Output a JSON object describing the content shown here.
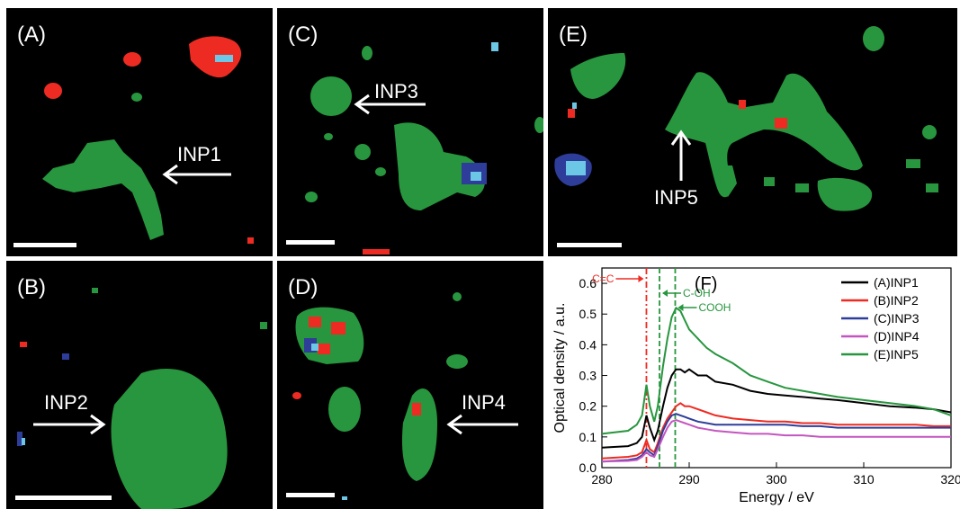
{
  "panels": {
    "A": {
      "label": "(A)",
      "particle": "INP1"
    },
    "B": {
      "label": "(B)",
      "particle": "INP2"
    },
    "C": {
      "label": "(C)",
      "particle": "INP3"
    },
    "D": {
      "label": "(D)",
      "particle": "INP4"
    },
    "E": {
      "label": "(E)",
      "particle": "INP5"
    }
  },
  "colors": {
    "green": "#27963e",
    "red": "#ee2b22",
    "lightblue": "#6cc7e6",
    "blue": "#2e3d9a",
    "magenta": "#c455c0",
    "black": "#000000"
  },
  "chart_data": {
    "type": "line",
    "panel_label": "(F)",
    "xlabel": "Energy / eV",
    "ylabel": "Optical density / a.u.",
    "xlim": [
      280,
      320
    ],
    "ylim": [
      0.0,
      0.65
    ],
    "xticks": [
      280,
      290,
      300,
      310,
      320
    ],
    "yticks": [
      0.0,
      0.1,
      0.2,
      0.3,
      0.4,
      0.5,
      0.6
    ],
    "legend_position": "top-right",
    "markers": [
      {
        "label": "C=C",
        "x": 285.1,
        "color": "#ee2b22",
        "arrow": "right"
      },
      {
        "label": "C-OH",
        "x": 286.6,
        "color": "#27963e",
        "arrow": "left"
      },
      {
        "label": "COOH",
        "x": 288.4,
        "color": "#27963e",
        "arrow": "left"
      }
    ],
    "x": [
      280,
      283,
      284,
      284.6,
      285.1,
      285.5,
      286,
      286.4,
      287,
      287.5,
      288,
      288.5,
      289,
      289.5,
      290,
      291,
      292,
      293,
      295,
      297,
      299,
      301,
      303,
      305,
      307,
      310,
      313,
      316,
      318,
      320
    ],
    "series": [
      {
        "name": "(A)INP1",
        "color": "#000000",
        "values": [
          0.065,
          0.07,
          0.08,
          0.1,
          0.17,
          0.13,
          0.09,
          0.12,
          0.2,
          0.26,
          0.3,
          0.32,
          0.32,
          0.31,
          0.32,
          0.3,
          0.3,
          0.28,
          0.27,
          0.25,
          0.24,
          0.235,
          0.23,
          0.225,
          0.22,
          0.21,
          0.2,
          0.195,
          0.19,
          0.18
        ]
      },
      {
        "name": "(B)INP2",
        "color": "#ee2b22",
        "values": [
          0.03,
          0.035,
          0.04,
          0.05,
          0.09,
          0.06,
          0.05,
          0.08,
          0.13,
          0.16,
          0.18,
          0.2,
          0.21,
          0.2,
          0.2,
          0.19,
          0.18,
          0.17,
          0.16,
          0.155,
          0.15,
          0.15,
          0.145,
          0.145,
          0.14,
          0.14,
          0.14,
          0.14,
          0.135,
          0.135
        ]
      },
      {
        "name": "(C)INP3",
        "color": "#2e3d9a",
        "values": [
          0.02,
          0.025,
          0.03,
          0.04,
          0.06,
          0.05,
          0.04,
          0.07,
          0.12,
          0.15,
          0.17,
          0.175,
          0.17,
          0.165,
          0.16,
          0.15,
          0.145,
          0.14,
          0.14,
          0.14,
          0.14,
          0.14,
          0.135,
          0.135,
          0.13,
          0.13,
          0.13,
          0.13,
          0.13,
          0.13
        ]
      },
      {
        "name": "(D)INP4",
        "color": "#c455c0",
        "values": [
          0.02,
          0.022,
          0.025,
          0.035,
          0.05,
          0.04,
          0.035,
          0.06,
          0.1,
          0.13,
          0.15,
          0.155,
          0.15,
          0.145,
          0.14,
          0.13,
          0.125,
          0.12,
          0.115,
          0.11,
          0.11,
          0.105,
          0.105,
          0.1,
          0.1,
          0.1,
          0.1,
          0.1,
          0.1,
          0.1
        ]
      },
      {
        "name": "(E)INP5",
        "color": "#27963e",
        "values": [
          0.11,
          0.12,
          0.14,
          0.17,
          0.27,
          0.2,
          0.15,
          0.2,
          0.33,
          0.42,
          0.49,
          0.52,
          0.51,
          0.48,
          0.45,
          0.42,
          0.39,
          0.37,
          0.34,
          0.3,
          0.28,
          0.26,
          0.25,
          0.24,
          0.23,
          0.22,
          0.21,
          0.2,
          0.19,
          0.17
        ]
      }
    ]
  }
}
